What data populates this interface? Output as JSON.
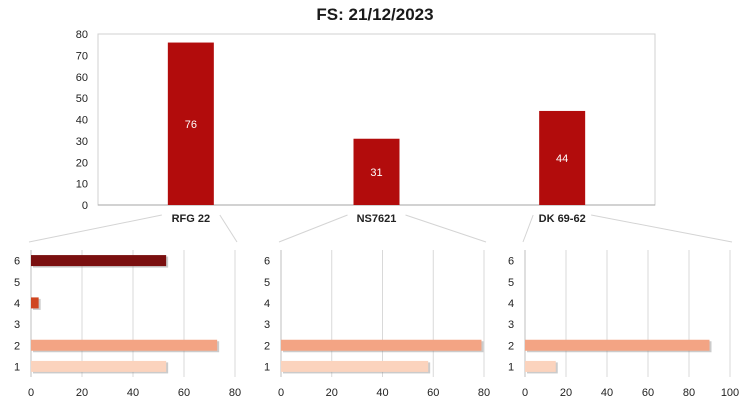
{
  "chart_data": [
    {
      "type": "bar",
      "title": "FS: 21/12/2023",
      "categories": [
        "RFG 22",
        "NS7621",
        "DK 69-62"
      ],
      "values": [
        76,
        31,
        44
      ],
      "data_labels": [
        "76",
        "31",
        "44"
      ],
      "ylim": [
        0,
        80
      ],
      "yticks": [
        0,
        10,
        20,
        30,
        40,
        50,
        60,
        70,
        80
      ],
      "grid": false,
      "color": "#b20c0c"
    },
    {
      "type": "bar",
      "orientation": "horizontal",
      "parent_category": "RFG 22",
      "categories": [
        "1",
        "2",
        "3",
        "4",
        "5",
        "6"
      ],
      "values": [
        53,
        73,
        0,
        3,
        0,
        53
      ],
      "xlim": [
        0,
        80
      ],
      "xticks": [
        0,
        20,
        40,
        60,
        80
      ],
      "grid": true
    },
    {
      "type": "bar",
      "orientation": "horizontal",
      "parent_category": "NS7621",
      "categories": [
        "1",
        "2",
        "3",
        "4",
        "5",
        "6"
      ],
      "values": [
        58,
        79,
        0,
        0,
        0,
        0
      ],
      "xlim": [
        0,
        80
      ],
      "xticks": [
        0,
        20,
        40,
        60,
        80
      ],
      "grid": true
    },
    {
      "type": "bar",
      "orientation": "horizontal",
      "parent_category": "DK 69-62",
      "categories": [
        "1",
        "2",
        "3",
        "4",
        "5",
        "6"
      ],
      "values": [
        15,
        90,
        0,
        0,
        0,
        0
      ],
      "xlim": [
        0,
        100
      ],
      "xticks": [
        0,
        20,
        40,
        60,
        80,
        100
      ],
      "grid": true
    }
  ],
  "colors": {
    "main_bar": "#b20c0c",
    "row_colors": {
      "1": "#fbd3bd",
      "2": "#f3a484",
      "4": "#cf4520",
      "6": "#7a0f0f"
    }
  }
}
